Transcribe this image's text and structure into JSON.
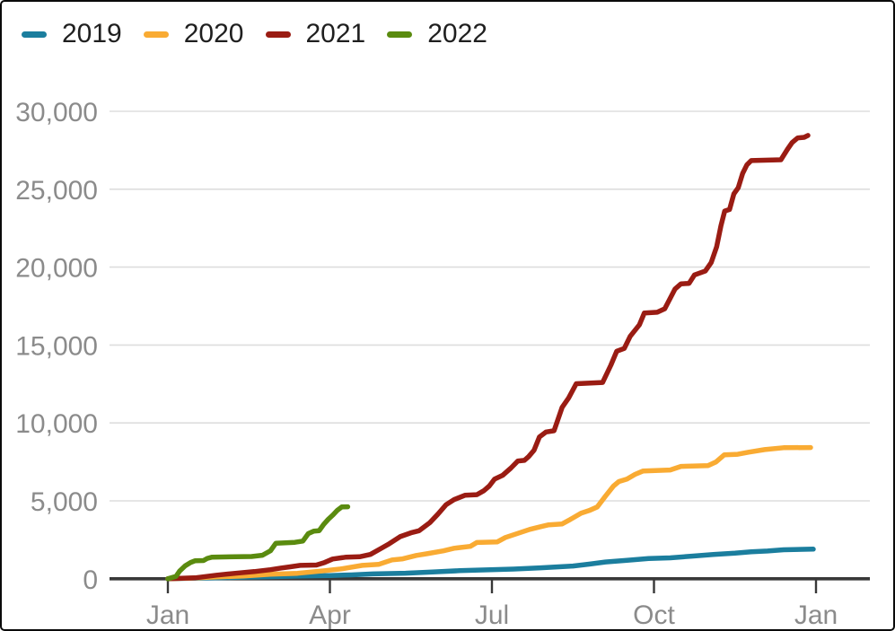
{
  "chart_data": {
    "type": "line",
    "title": "",
    "xlabel": "",
    "ylabel": "",
    "x_unit": "months since Jan 1 of each year (0 = Jan, 12 = following Jan)",
    "ylim": [
      0,
      30000
    ],
    "grid": true,
    "legend_position": "top-left",
    "x_axis": {
      "tick_labels": [
        "Jan",
        "Apr",
        "Jul",
        "Oct",
        "Jan"
      ],
      "tick_months": [
        0,
        3,
        6,
        9,
        12
      ]
    },
    "y_axis": {
      "tick_labels": [
        "0",
        "5,000",
        "10,000",
        "15,000",
        "20,000",
        "25,000",
        "30,000"
      ],
      "tick_values": [
        0,
        5000,
        10000,
        15000,
        20000,
        25000,
        30000
      ]
    },
    "series": [
      {
        "name": "2019",
        "color": "#1b7e9e",
        "end_value": 1900,
        "points": [
          [
            0,
            0
          ],
          [
            0.5,
            40
          ],
          [
            1,
            70
          ],
          [
            1.5,
            110
          ],
          [
            2,
            140
          ],
          [
            2.5,
            170
          ],
          [
            3,
            210
          ],
          [
            3.4,
            250
          ],
          [
            3.8,
            310
          ],
          [
            4.4,
            360
          ],
          [
            4.9,
            440
          ],
          [
            5.4,
            520
          ],
          [
            5.9,
            570
          ],
          [
            6.4,
            620
          ],
          [
            6.9,
            700
          ],
          [
            7.2,
            760
          ],
          [
            7.5,
            820
          ],
          [
            7.8,
            940
          ],
          [
            8.1,
            1080
          ],
          [
            8.5,
            1180
          ],
          [
            8.9,
            1300
          ],
          [
            9.3,
            1340
          ],
          [
            9.7,
            1450
          ],
          [
            10.1,
            1560
          ],
          [
            10.5,
            1640
          ],
          [
            10.8,
            1730
          ],
          [
            11.1,
            1780
          ],
          [
            11.4,
            1860
          ],
          [
            11.95,
            1900
          ]
        ]
      },
      {
        "name": "2020",
        "color": "#f9ab33",
        "end_value": 8420,
        "points": [
          [
            0,
            0
          ],
          [
            0.4,
            40
          ],
          [
            0.9,
            120
          ],
          [
            1.4,
            170
          ],
          [
            1.9,
            290
          ],
          [
            2.4,
            350
          ],
          [
            2.9,
            520
          ],
          [
            3.2,
            630
          ],
          [
            3.6,
            860
          ],
          [
            3.9,
            920
          ],
          [
            4.15,
            1210
          ],
          [
            4.35,
            1280
          ],
          [
            4.6,
            1500
          ],
          [
            4.8,
            1610
          ],
          [
            5.1,
            1790
          ],
          [
            5.3,
            1960
          ],
          [
            5.6,
            2080
          ],
          [
            5.72,
            2330
          ],
          [
            6.1,
            2370
          ],
          [
            6.25,
            2650
          ],
          [
            6.5,
            2940
          ],
          [
            6.7,
            3170
          ],
          [
            6.9,
            3340
          ],
          [
            7.05,
            3460
          ],
          [
            7.3,
            3520
          ],
          [
            7.45,
            3800
          ],
          [
            7.65,
            4210
          ],
          [
            7.8,
            4380
          ],
          [
            7.95,
            4610
          ],
          [
            8.1,
            5300
          ],
          [
            8.25,
            5950
          ],
          [
            8.35,
            6240
          ],
          [
            8.5,
            6400
          ],
          [
            8.65,
            6700
          ],
          [
            8.8,
            6920
          ],
          [
            9.3,
            6980
          ],
          [
            9.5,
            7210
          ],
          [
            10.0,
            7260
          ],
          [
            10.15,
            7500
          ],
          [
            10.3,
            7950
          ],
          [
            10.55,
            7990
          ],
          [
            10.75,
            8120
          ],
          [
            11.05,
            8290
          ],
          [
            11.4,
            8410
          ],
          [
            11.9,
            8420
          ]
        ]
      },
      {
        "name": "2021",
        "color": "#9a1c13",
        "end_value": 28450,
        "points": [
          [
            0,
            0
          ],
          [
            0.5,
            60
          ],
          [
            0.9,
            230
          ],
          [
            1.25,
            350
          ],
          [
            1.6,
            460
          ],
          [
            1.9,
            580
          ],
          [
            2.1,
            690
          ],
          [
            2.25,
            760
          ],
          [
            2.45,
            860
          ],
          [
            2.75,
            880
          ],
          [
            2.9,
            1040
          ],
          [
            3.05,
            1270
          ],
          [
            3.3,
            1390
          ],
          [
            3.55,
            1410
          ],
          [
            3.75,
            1560
          ],
          [
            3.95,
            1950
          ],
          [
            4.1,
            2250
          ],
          [
            4.3,
            2700
          ],
          [
            4.5,
            2950
          ],
          [
            4.65,
            3080
          ],
          [
            4.85,
            3600
          ],
          [
            5.0,
            4150
          ],
          [
            5.15,
            4750
          ],
          [
            5.3,
            5080
          ],
          [
            5.5,
            5360
          ],
          [
            5.72,
            5400
          ],
          [
            5.85,
            5650
          ],
          [
            5.95,
            5950
          ],
          [
            6.05,
            6400
          ],
          [
            6.2,
            6640
          ],
          [
            6.35,
            7100
          ],
          [
            6.48,
            7560
          ],
          [
            6.6,
            7600
          ],
          [
            6.68,
            7840
          ],
          [
            6.78,
            8250
          ],
          [
            6.88,
            9100
          ],
          [
            7.0,
            9420
          ],
          [
            7.15,
            9500
          ],
          [
            7.3,
            11000
          ],
          [
            7.42,
            11600
          ],
          [
            7.56,
            12520
          ],
          [
            8.05,
            12600
          ],
          [
            8.2,
            13700
          ],
          [
            8.31,
            14600
          ],
          [
            8.45,
            14780
          ],
          [
            8.56,
            15560
          ],
          [
            8.73,
            16300
          ],
          [
            8.82,
            17050
          ],
          [
            9.06,
            17100
          ],
          [
            9.2,
            17330
          ],
          [
            9.39,
            18600
          ],
          [
            9.5,
            18930
          ],
          [
            9.65,
            18960
          ],
          [
            9.75,
            19500
          ],
          [
            9.95,
            19750
          ],
          [
            10.06,
            20300
          ],
          [
            10.16,
            21300
          ],
          [
            10.24,
            22650
          ],
          [
            10.31,
            23600
          ],
          [
            10.4,
            23700
          ],
          [
            10.48,
            24700
          ],
          [
            10.56,
            25100
          ],
          [
            10.64,
            26000
          ],
          [
            10.72,
            26560
          ],
          [
            10.8,
            26840
          ],
          [
            11.35,
            26890
          ],
          [
            11.47,
            27550
          ],
          [
            11.56,
            28000
          ],
          [
            11.66,
            28290
          ],
          [
            11.78,
            28330
          ],
          [
            11.85,
            28450
          ]
        ]
      },
      {
        "name": "2022",
        "color": "#5a8b0f",
        "end_value": 4620,
        "points": [
          [
            0,
            0
          ],
          [
            0.15,
            150
          ],
          [
            0.22,
            500
          ],
          [
            0.32,
            830
          ],
          [
            0.42,
            1040
          ],
          [
            0.5,
            1150
          ],
          [
            0.66,
            1170
          ],
          [
            0.73,
            1310
          ],
          [
            0.82,
            1390
          ],
          [
            1.55,
            1430
          ],
          [
            1.75,
            1510
          ],
          [
            1.9,
            1800
          ],
          [
            2.0,
            2280
          ],
          [
            2.35,
            2340
          ],
          [
            2.5,
            2420
          ],
          [
            2.6,
            2900
          ],
          [
            2.7,
            3060
          ],
          [
            2.8,
            3090
          ],
          [
            2.88,
            3470
          ],
          [
            2.97,
            3820
          ],
          [
            3.06,
            4110
          ],
          [
            3.14,
            4400
          ],
          [
            3.22,
            4610
          ],
          [
            3.33,
            4620
          ]
        ]
      }
    ]
  },
  "style": {
    "grid_color": "#dedede",
    "axis_color": "#383838",
    "tick_label_color": "#8b8b8b",
    "legend_text_color": "#1f1f1f",
    "background": "#ffffff",
    "border_color": "#0a0a0a"
  }
}
